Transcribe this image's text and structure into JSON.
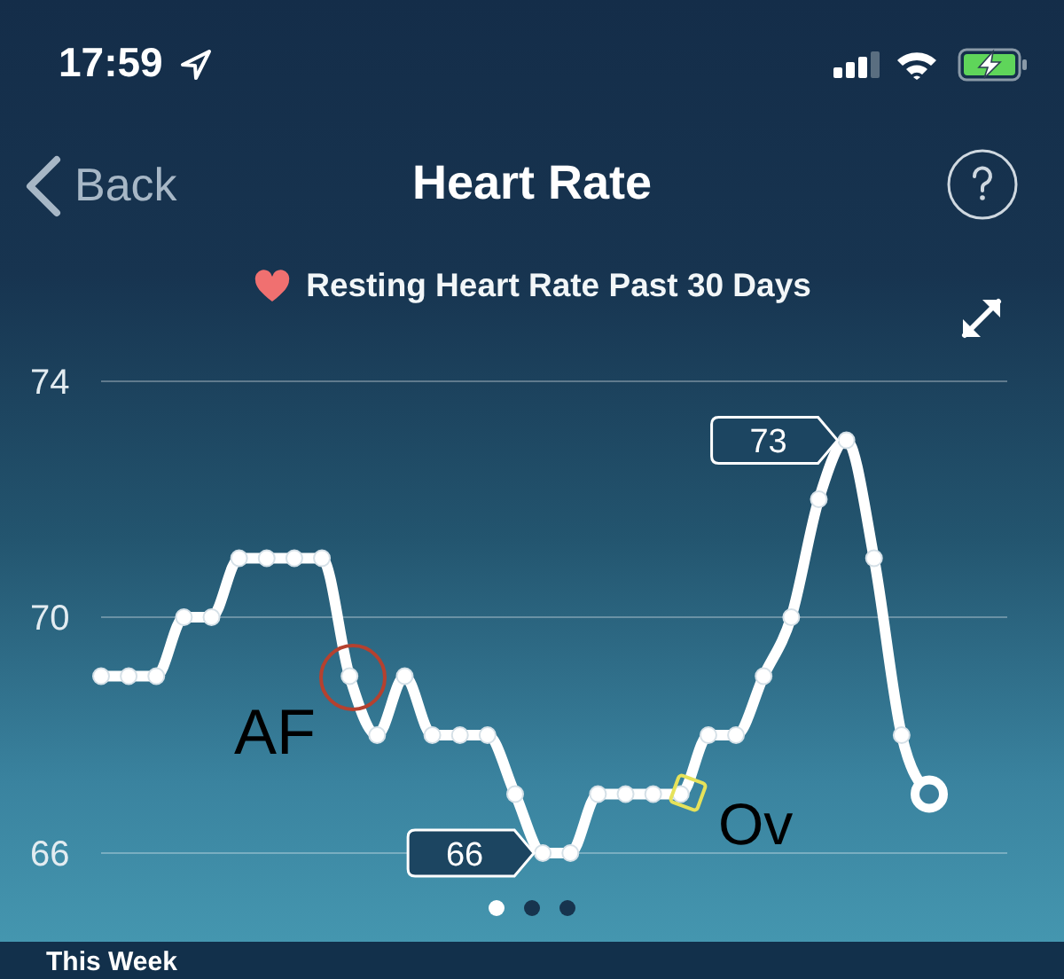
{
  "chart_data": {
    "type": "line",
    "title": "Heart Rate",
    "subtitle": "Resting Heart Rate Past 30 Days",
    "categories": [
      null,
      null,
      null,
      null,
      null,
      null,
      null,
      null,
      null,
      null,
      null,
      null,
      null,
      null,
      null,
      null,
      null,
      null,
      null,
      null,
      null,
      null,
      null,
      null,
      null,
      null,
      null,
      null,
      null,
      null,
      null
    ],
    "values": [
      69,
      69,
      69,
      70,
      70,
      71,
      71,
      71,
      71,
      69,
      68,
      69,
      68,
      68,
      68,
      67,
      66,
      66,
      67,
      67,
      67,
      67,
      68,
      68,
      69,
      70,
      72,
      73,
      71,
      68,
      67
    ],
    "value_labels": [
      null,
      null,
      null,
      null,
      null,
      null,
      null,
      null,
      null,
      null,
      null,
      null,
      null,
      null,
      null,
      null,
      "66",
      null,
      null,
      null,
      null,
      null,
      null,
      null,
      null,
      null,
      null,
      "73",
      null,
      null,
      null
    ],
    "color": "#ffffff",
    "ylim": [
      66,
      74
    ],
    "yticks": [
      66,
      70,
      74
    ],
    "grid": "y",
    "tick_labels": "y",
    "marker": "circle",
    "line_style": "solid",
    "annotations": [
      "17:59",
      "Back",
      "AF",
      "Ov",
      "This Week"
    ]
  }
}
